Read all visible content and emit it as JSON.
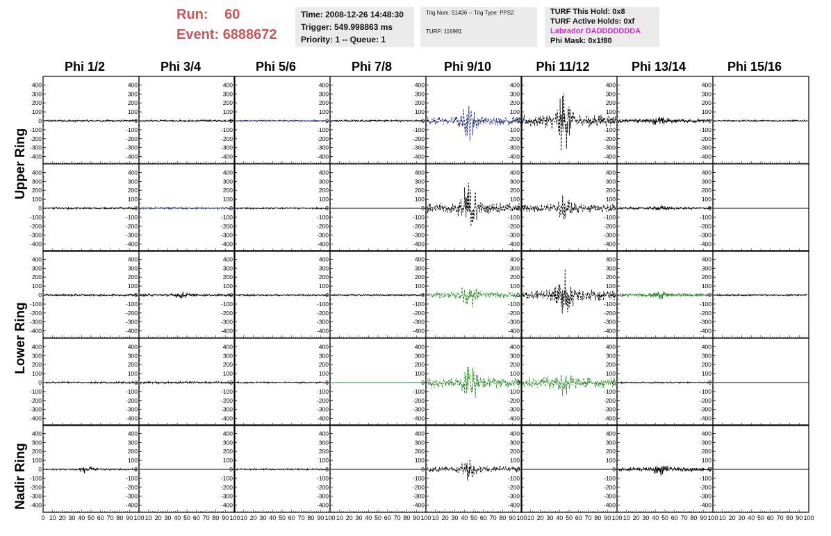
{
  "header": {
    "run_label": "Run:",
    "run_value": "60",
    "event_label": "Event:",
    "event_value": "6888672",
    "time": "Time: 2008-12-26 14:48:30",
    "trigger": "Trigger: 549.998863 ms",
    "priority": "Priority: 1 -- Queue: 1",
    "trig_num": "Trig Num: 51436 -- Trig Type: PPS2",
    "turf": "TURF: 116981",
    "turf_hold": "TURF This Hold: 0x8",
    "turf_active": "TURF Active Holds: 0xf",
    "labrador": "Labrador DADDDDDDDA",
    "phi_mask": "Phi Mask: 0x1f80",
    "labrador_color": "#e020e0"
  },
  "chart_data": {
    "type": "line",
    "columns": [
      "Phi 1/2",
      "Phi 3/4",
      "Phi 5/6",
      "Phi 7/8",
      "Phi 9/10",
      "Phi 11/12",
      "Phi 13/14",
      "Phi 15/16"
    ],
    "rows": [
      "Upper Ring",
      "Lower Ring",
      "Nadir Ring"
    ],
    "ylim": [
      -450,
      450
    ],
    "yticks": [
      400,
      300,
      200,
      100,
      0,
      -100,
      -200,
      -300,
      -400
    ],
    "xlim": [
      0,
      100
    ],
    "xticks_first": [
      "0",
      "10",
      "20",
      "30",
      "40",
      "50",
      "60",
      "70",
      "80",
      "90",
      "100"
    ],
    "xticks_other": [
      "10",
      "20",
      "30",
      "40",
      "50",
      "60",
      "70",
      "80",
      "90",
      "100"
    ],
    "colors": {
      "black": "#000000",
      "blue": "#1a237e",
      "green": "#1e8a1e"
    },
    "panels": [
      [
        {
          "color": "black",
          "amp": 12,
          "burst": 0,
          "flat": false
        },
        {
          "color": "black",
          "amp": 12,
          "burst": 0,
          "flat": false
        },
        {
          "color": "blue",
          "amp": 10,
          "burst": 0,
          "flat": false
        },
        {
          "color": "black",
          "amp": 12,
          "burst": 0,
          "flat": false
        },
        {
          "color": "blue",
          "amp": 55,
          "burst": 180,
          "flat": false
        },
        {
          "color": "black",
          "amp": 80,
          "burst": 330,
          "flat": false
        },
        {
          "color": "black",
          "amp": 25,
          "burst": 40,
          "flat": false
        },
        {
          "color": "black",
          "amp": 10,
          "burst": 0,
          "flat": false
        }
      ],
      [
        {
          "color": "black",
          "amp": 12,
          "burst": 0,
          "flat": false
        },
        {
          "color": "blue",
          "amp": 12,
          "burst": 0,
          "flat": false
        },
        {
          "color": "black",
          "amp": 10,
          "burst": 0,
          "flat": false
        },
        {
          "color": "black",
          "amp": 0,
          "burst": 0,
          "flat": true
        },
        {
          "color": "black",
          "amp": 60,
          "burst": 320,
          "flat": false
        },
        {
          "color": "black",
          "amp": 55,
          "burst": 120,
          "flat": false
        },
        {
          "color": "black",
          "amp": 15,
          "burst": 20,
          "flat": false
        },
        {
          "color": "black",
          "amp": 0,
          "burst": 0,
          "flat": true
        }
      ],
      [
        {
          "color": "black",
          "amp": 12,
          "burst": 0,
          "flat": false
        },
        {
          "color": "black",
          "amp": 14,
          "burst": 30,
          "flat": false
        },
        {
          "color": "black",
          "amp": 10,
          "burst": 0,
          "flat": false
        },
        {
          "color": "black",
          "amp": 10,
          "burst": 0,
          "flat": false
        },
        {
          "color": "green",
          "amp": 40,
          "burst": 150,
          "flat": false
        },
        {
          "color": "black",
          "amp": 70,
          "burst": 280,
          "flat": false
        },
        {
          "color": "green",
          "amp": 20,
          "burst": 40,
          "flat": false
        },
        {
          "color": "black",
          "amp": 10,
          "burst": 0,
          "flat": false
        }
      ],
      [
        {
          "color": "black",
          "amp": 12,
          "burst": 0,
          "flat": false
        },
        {
          "color": "black",
          "amp": 14,
          "burst": 0,
          "flat": false
        },
        {
          "color": "black",
          "amp": 10,
          "burst": 0,
          "flat": false
        },
        {
          "color": "green",
          "amp": 0,
          "burst": 0,
          "flat": true
        },
        {
          "color": "green",
          "amp": 70,
          "burst": 200,
          "flat": false
        },
        {
          "color": "green",
          "amp": 70,
          "burst": 100,
          "flat": false
        },
        {
          "color": "black",
          "amp": 10,
          "burst": 0,
          "flat": false
        },
        {
          "color": "black",
          "amp": 0,
          "burst": 0,
          "flat": true
        }
      ],
      [
        {
          "color": "black",
          "amp": 10,
          "burst": 40,
          "flat": false
        },
        {
          "color": "black",
          "amp": 0,
          "burst": 0,
          "flat": true
        },
        {
          "color": "black",
          "amp": 10,
          "burst": 0,
          "flat": false
        },
        {
          "color": "black",
          "amp": 0,
          "burst": 0,
          "flat": true
        },
        {
          "color": "black",
          "amp": 40,
          "burst": 110,
          "flat": false
        },
        {
          "color": "black",
          "amp": 0,
          "burst": 0,
          "flat": true
        },
        {
          "color": "black",
          "amp": 25,
          "burst": 50,
          "flat": false
        },
        {
          "color": "black",
          "amp": 0,
          "burst": 0,
          "flat": true
        }
      ]
    ]
  }
}
